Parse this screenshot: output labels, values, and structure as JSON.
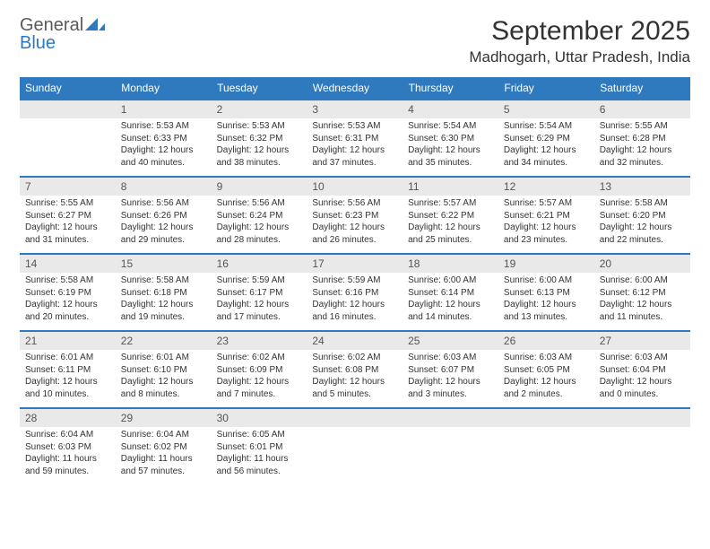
{
  "logo": {
    "text1": "General",
    "text2": "Blue"
  },
  "header": {
    "month_title": "September 2025",
    "location": "Madhogarh, Uttar Pradesh, India"
  },
  "colors": {
    "header_bg": "#2f7abf",
    "header_text": "#ffffff",
    "daynum_bg": "#e9e9e9",
    "week_divider": "#2f7abf",
    "body_text": "#333333",
    "logo_gray": "#5a5a5a",
    "logo_blue": "#2f7abf",
    "background": "#ffffff"
  },
  "weekdays": [
    "Sunday",
    "Monday",
    "Tuesday",
    "Wednesday",
    "Thursday",
    "Friday",
    "Saturday"
  ],
  "weeks": [
    [
      {
        "day": "",
        "sunrise": "",
        "sunset": "",
        "daylight": ""
      },
      {
        "day": "1",
        "sunrise": "Sunrise: 5:53 AM",
        "sunset": "Sunset: 6:33 PM",
        "daylight": "Daylight: 12 hours and 40 minutes."
      },
      {
        "day": "2",
        "sunrise": "Sunrise: 5:53 AM",
        "sunset": "Sunset: 6:32 PM",
        "daylight": "Daylight: 12 hours and 38 minutes."
      },
      {
        "day": "3",
        "sunrise": "Sunrise: 5:53 AM",
        "sunset": "Sunset: 6:31 PM",
        "daylight": "Daylight: 12 hours and 37 minutes."
      },
      {
        "day": "4",
        "sunrise": "Sunrise: 5:54 AM",
        "sunset": "Sunset: 6:30 PM",
        "daylight": "Daylight: 12 hours and 35 minutes."
      },
      {
        "day": "5",
        "sunrise": "Sunrise: 5:54 AM",
        "sunset": "Sunset: 6:29 PM",
        "daylight": "Daylight: 12 hours and 34 minutes."
      },
      {
        "day": "6",
        "sunrise": "Sunrise: 5:55 AM",
        "sunset": "Sunset: 6:28 PM",
        "daylight": "Daylight: 12 hours and 32 minutes."
      }
    ],
    [
      {
        "day": "7",
        "sunrise": "Sunrise: 5:55 AM",
        "sunset": "Sunset: 6:27 PM",
        "daylight": "Daylight: 12 hours and 31 minutes."
      },
      {
        "day": "8",
        "sunrise": "Sunrise: 5:56 AM",
        "sunset": "Sunset: 6:26 PM",
        "daylight": "Daylight: 12 hours and 29 minutes."
      },
      {
        "day": "9",
        "sunrise": "Sunrise: 5:56 AM",
        "sunset": "Sunset: 6:24 PM",
        "daylight": "Daylight: 12 hours and 28 minutes."
      },
      {
        "day": "10",
        "sunrise": "Sunrise: 5:56 AM",
        "sunset": "Sunset: 6:23 PM",
        "daylight": "Daylight: 12 hours and 26 minutes."
      },
      {
        "day": "11",
        "sunrise": "Sunrise: 5:57 AM",
        "sunset": "Sunset: 6:22 PM",
        "daylight": "Daylight: 12 hours and 25 minutes."
      },
      {
        "day": "12",
        "sunrise": "Sunrise: 5:57 AM",
        "sunset": "Sunset: 6:21 PM",
        "daylight": "Daylight: 12 hours and 23 minutes."
      },
      {
        "day": "13",
        "sunrise": "Sunrise: 5:58 AM",
        "sunset": "Sunset: 6:20 PM",
        "daylight": "Daylight: 12 hours and 22 minutes."
      }
    ],
    [
      {
        "day": "14",
        "sunrise": "Sunrise: 5:58 AM",
        "sunset": "Sunset: 6:19 PM",
        "daylight": "Daylight: 12 hours and 20 minutes."
      },
      {
        "day": "15",
        "sunrise": "Sunrise: 5:58 AM",
        "sunset": "Sunset: 6:18 PM",
        "daylight": "Daylight: 12 hours and 19 minutes."
      },
      {
        "day": "16",
        "sunrise": "Sunrise: 5:59 AM",
        "sunset": "Sunset: 6:17 PM",
        "daylight": "Daylight: 12 hours and 17 minutes."
      },
      {
        "day": "17",
        "sunrise": "Sunrise: 5:59 AM",
        "sunset": "Sunset: 6:16 PM",
        "daylight": "Daylight: 12 hours and 16 minutes."
      },
      {
        "day": "18",
        "sunrise": "Sunrise: 6:00 AM",
        "sunset": "Sunset: 6:14 PM",
        "daylight": "Daylight: 12 hours and 14 minutes."
      },
      {
        "day": "19",
        "sunrise": "Sunrise: 6:00 AM",
        "sunset": "Sunset: 6:13 PM",
        "daylight": "Daylight: 12 hours and 13 minutes."
      },
      {
        "day": "20",
        "sunrise": "Sunrise: 6:00 AM",
        "sunset": "Sunset: 6:12 PM",
        "daylight": "Daylight: 12 hours and 11 minutes."
      }
    ],
    [
      {
        "day": "21",
        "sunrise": "Sunrise: 6:01 AM",
        "sunset": "Sunset: 6:11 PM",
        "daylight": "Daylight: 12 hours and 10 minutes."
      },
      {
        "day": "22",
        "sunrise": "Sunrise: 6:01 AM",
        "sunset": "Sunset: 6:10 PM",
        "daylight": "Daylight: 12 hours and 8 minutes."
      },
      {
        "day": "23",
        "sunrise": "Sunrise: 6:02 AM",
        "sunset": "Sunset: 6:09 PM",
        "daylight": "Daylight: 12 hours and 7 minutes."
      },
      {
        "day": "24",
        "sunrise": "Sunrise: 6:02 AM",
        "sunset": "Sunset: 6:08 PM",
        "daylight": "Daylight: 12 hours and 5 minutes."
      },
      {
        "day": "25",
        "sunrise": "Sunrise: 6:03 AM",
        "sunset": "Sunset: 6:07 PM",
        "daylight": "Daylight: 12 hours and 3 minutes."
      },
      {
        "day": "26",
        "sunrise": "Sunrise: 6:03 AM",
        "sunset": "Sunset: 6:05 PM",
        "daylight": "Daylight: 12 hours and 2 minutes."
      },
      {
        "day": "27",
        "sunrise": "Sunrise: 6:03 AM",
        "sunset": "Sunset: 6:04 PM",
        "daylight": "Daylight: 12 hours and 0 minutes."
      }
    ],
    [
      {
        "day": "28",
        "sunrise": "Sunrise: 6:04 AM",
        "sunset": "Sunset: 6:03 PM",
        "daylight": "Daylight: 11 hours and 59 minutes."
      },
      {
        "day": "29",
        "sunrise": "Sunrise: 6:04 AM",
        "sunset": "Sunset: 6:02 PM",
        "daylight": "Daylight: 11 hours and 57 minutes."
      },
      {
        "day": "30",
        "sunrise": "Sunrise: 6:05 AM",
        "sunset": "Sunset: 6:01 PM",
        "daylight": "Daylight: 11 hours and 56 minutes."
      },
      {
        "day": "",
        "sunrise": "",
        "sunset": "",
        "daylight": ""
      },
      {
        "day": "",
        "sunrise": "",
        "sunset": "",
        "daylight": ""
      },
      {
        "day": "",
        "sunrise": "",
        "sunset": "",
        "daylight": ""
      },
      {
        "day": "",
        "sunrise": "",
        "sunset": "",
        "daylight": ""
      }
    ]
  ]
}
